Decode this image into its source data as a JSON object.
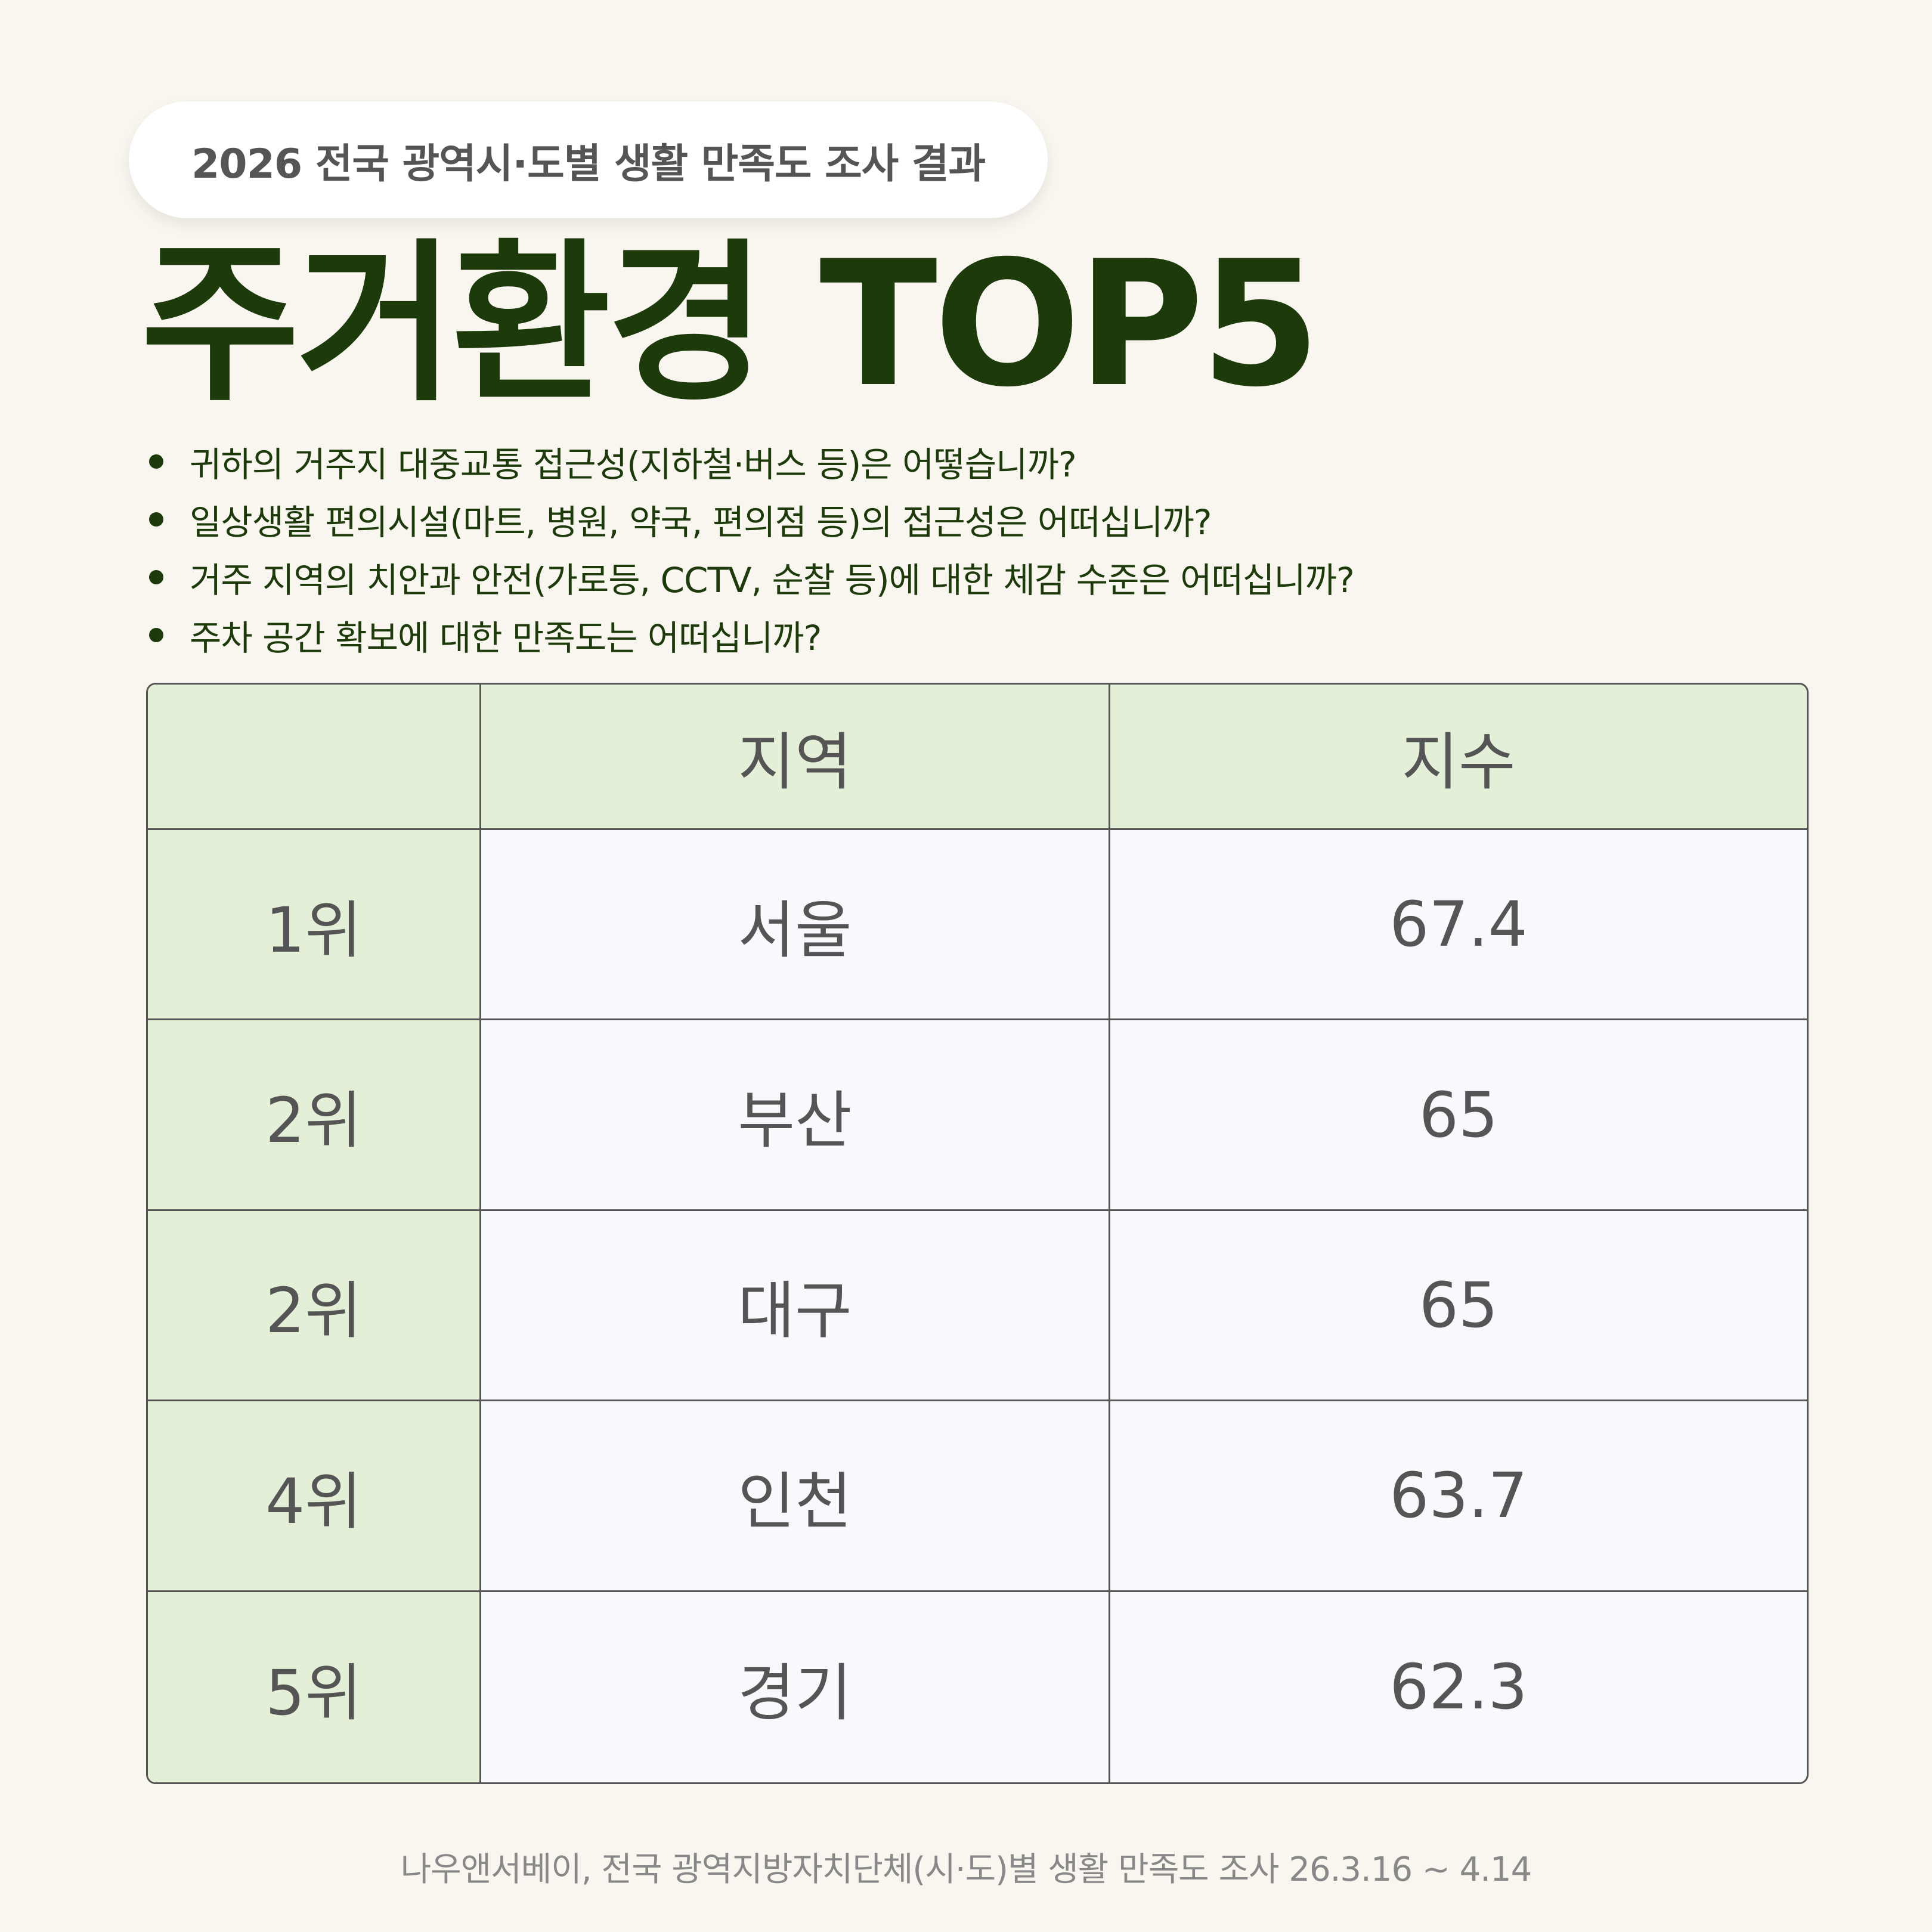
{
  "header": {
    "badge": "2026 전국 광역시·도별 생활 만족도 조사 결과",
    "title": "주거환경 TOP5"
  },
  "questions": [
    "귀하의 거주지 대중교통 접근성(지하철·버스 등)은 어떻습니까?",
    "일상생활 편의시설(마트, 병원, 약국, 편의점 등)의 접근성은 어떠십니까?",
    "거주 지역의 치안과 안전(가로등, CCTV, 순찰 등)에 대한 체감 수준은 어떠십니까?",
    "주차 공간 확보에 대한 만족도는 어떠십니까?"
  ],
  "table": {
    "columns": [
      "",
      "지역",
      "지수"
    ],
    "rows": [
      {
        "rank": "1위",
        "region": "서울",
        "index": "67.4"
      },
      {
        "rank": "2위",
        "region": "부산",
        "index": "65"
      },
      {
        "rank": "2위",
        "region": "대구",
        "index": "65"
      },
      {
        "rank": "4위",
        "region": "인천",
        "index": "63.7"
      },
      {
        "rank": "5위",
        "region": "경기",
        "index": "62.3"
      }
    ]
  },
  "footer": {
    "source": "나우앤서베이, 전국 광역지방자치단체(시·도)별 생활 만족도 조사 26.3.16 ~ 4.14"
  },
  "colors": {
    "background": "#f8f6ef",
    "title": "#1c3a0a",
    "header_fill": "#e3efd6",
    "cell_fill": "#f8f9fc",
    "text": "#555555"
  }
}
